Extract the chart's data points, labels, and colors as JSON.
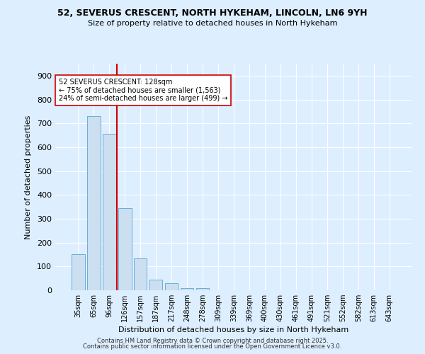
{
  "title_line1": "52, SEVERUS CRESCENT, NORTH HYKEHAM, LINCOLN, LN6 9YH",
  "title_line2": "Size of property relative to detached houses in North Hykeham",
  "xlabel": "Distribution of detached houses by size in North Hykeham",
  "ylabel": "Number of detached properties",
  "bar_labels": [
    "35sqm",
    "65sqm",
    "96sqm",
    "126sqm",
    "157sqm",
    "187sqm",
    "217sqm",
    "248sqm",
    "278sqm",
    "309sqm",
    "339sqm",
    "369sqm",
    "400sqm",
    "430sqm",
    "461sqm",
    "491sqm",
    "521sqm",
    "552sqm",
    "582sqm",
    "613sqm",
    "643sqm"
  ],
  "bar_values": [
    150,
    730,
    655,
    345,
    135,
    45,
    30,
    10,
    8,
    0,
    0,
    0,
    0,
    0,
    0,
    0,
    0,
    0,
    0,
    0,
    0
  ],
  "bar_color": "#ccdff0",
  "bar_edge_color": "#6aaed6",
  "red_line_color": "#cc0000",
  "annotation_text": "52 SEVERUS CRESCENT: 128sqm\n← 75% of detached houses are smaller (1,563)\n24% of semi-detached houses are larger (499) →",
  "annotation_box_color": "white",
  "annotation_box_edge": "#cc0000",
  "footer_line1": "Contains HM Land Registry data © Crown copyright and database right 2025.",
  "footer_line2": "Contains public sector information licensed under the Open Government Licence v3.0.",
  "bg_color": "#ddeeff",
  "plot_bg_color": "#ddeeff",
  "grid_color": "white",
  "ylim": [
    0,
    950
  ],
  "yticks": [
    0,
    100,
    200,
    300,
    400,
    500,
    600,
    700,
    800,
    900
  ]
}
